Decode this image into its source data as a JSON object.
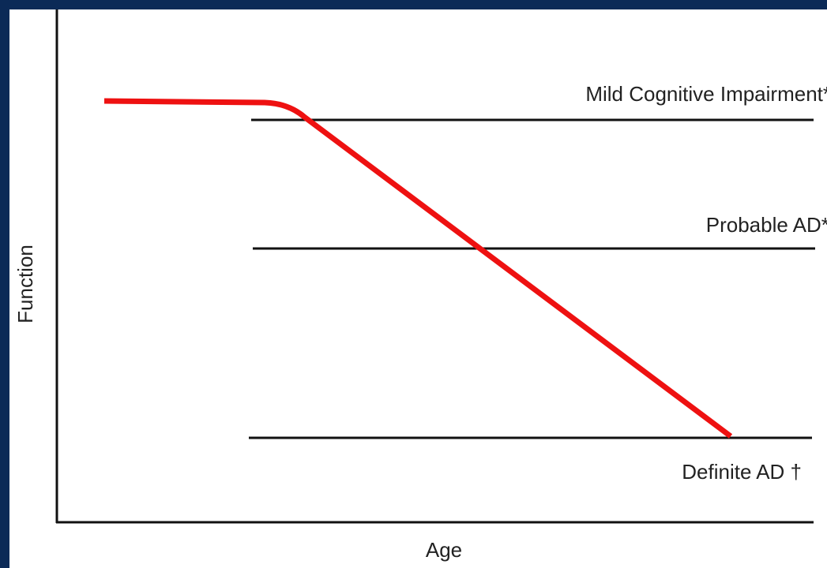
{
  "axes": {
    "y_label": "Function",
    "x_label": "Age"
  },
  "stages": [
    "Mild Cognitive Impairment*",
    "Probable AD**",
    "Definite AD †"
  ]
}
